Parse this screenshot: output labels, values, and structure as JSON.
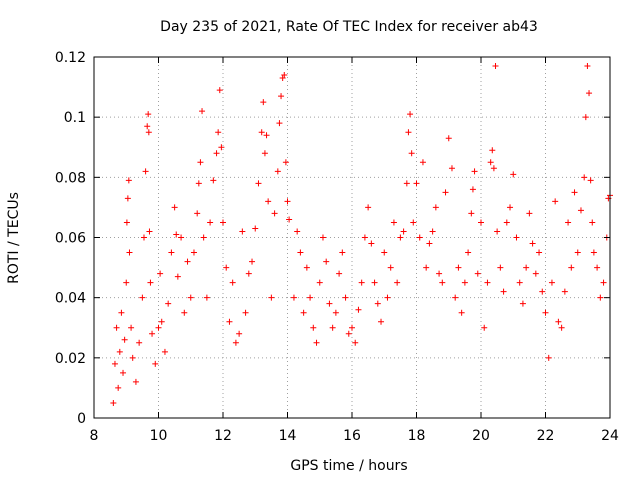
{
  "chart_data": {
    "type": "scatter",
    "title": "Day 235 of 2021, Rate Of TEC Index for receiver ab43",
    "xlabel": "GPS time / hours",
    "ylabel": "ROTI / TECUs",
    "xlim": [
      8,
      24
    ],
    "ylim": [
      0,
      0.12
    ],
    "xticks": [
      "8",
      "10",
      "12",
      "14",
      "16",
      "18",
      "20",
      "22",
      "24"
    ],
    "yticks": [
      "0",
      "0.02",
      "0.04",
      "0.06",
      "0.08",
      "0.1",
      "0.12"
    ],
    "grid": true,
    "marker": "+",
    "color": "#ff0000",
    "series": [
      {
        "points": [
          [
            8.6,
            0.005
          ],
          [
            8.65,
            0.018
          ],
          [
            8.7,
            0.03
          ],
          [
            8.75,
            0.01
          ],
          [
            8.8,
            0.022
          ],
          [
            8.85,
            0.035
          ],
          [
            8.9,
            0.015
          ],
          [
            8.95,
            0.026
          ],
          [
            9.0,
            0.045
          ],
          [
            9.02,
            0.065
          ],
          [
            9.05,
            0.073
          ],
          [
            9.08,
            0.079
          ],
          [
            9.1,
            0.055
          ],
          [
            9.15,
            0.03
          ],
          [
            9.2,
            0.02
          ],
          [
            9.3,
            0.012
          ],
          [
            9.4,
            0.025
          ],
          [
            9.5,
            0.04
          ],
          [
            9.55,
            0.06
          ],
          [
            9.6,
            0.082
          ],
          [
            9.65,
            0.097
          ],
          [
            9.68,
            0.101
          ],
          [
            9.7,
            0.095
          ],
          [
            9.72,
            0.062
          ],
          [
            9.75,
            0.045
          ],
          [
            9.8,
            0.028
          ],
          [
            9.9,
            0.018
          ],
          [
            10.0,
            0.03
          ],
          [
            10.05,
            0.048
          ],
          [
            10.1,
            0.032
          ],
          [
            10.2,
            0.022
          ],
          [
            10.3,
            0.038
          ],
          [
            10.4,
            0.055
          ],
          [
            10.5,
            0.07
          ],
          [
            10.55,
            0.061
          ],
          [
            10.6,
            0.047
          ],
          [
            10.7,
            0.06
          ],
          [
            10.8,
            0.035
          ],
          [
            10.9,
            0.052
          ],
          [
            11.0,
            0.04
          ],
          [
            11.1,
            0.055
          ],
          [
            11.2,
            0.068
          ],
          [
            11.25,
            0.078
          ],
          [
            11.3,
            0.085
          ],
          [
            11.35,
            0.102
          ],
          [
            11.4,
            0.06
          ],
          [
            11.5,
            0.04
          ],
          [
            11.6,
            0.065
          ],
          [
            11.7,
            0.079
          ],
          [
            11.8,
            0.088
          ],
          [
            11.85,
            0.095
          ],
          [
            11.9,
            0.109
          ],
          [
            11.95,
            0.09
          ],
          [
            12.0,
            0.065
          ],
          [
            12.1,
            0.05
          ],
          [
            12.2,
            0.032
          ],
          [
            12.3,
            0.045
          ],
          [
            12.4,
            0.025
          ],
          [
            12.5,
            0.028
          ],
          [
            12.6,
            0.062
          ],
          [
            12.7,
            0.035
          ],
          [
            12.8,
            0.048
          ],
          [
            12.9,
            0.052
          ],
          [
            13.0,
            0.063
          ],
          [
            13.1,
            0.078
          ],
          [
            13.2,
            0.095
          ],
          [
            13.25,
            0.105
          ],
          [
            13.3,
            0.088
          ],
          [
            13.35,
            0.094
          ],
          [
            13.4,
            0.072
          ],
          [
            13.5,
            0.04
          ],
          [
            13.6,
            0.068
          ],
          [
            13.7,
            0.082
          ],
          [
            13.75,
            0.098
          ],
          [
            13.8,
            0.107
          ],
          [
            13.85,
            0.113
          ],
          [
            13.9,
            0.114
          ],
          [
            13.95,
            0.085
          ],
          [
            14.0,
            0.072
          ],
          [
            14.05,
            0.066
          ],
          [
            14.2,
            0.04
          ],
          [
            14.3,
            0.062
          ],
          [
            14.4,
            0.055
          ],
          [
            14.5,
            0.035
          ],
          [
            14.6,
            0.05
          ],
          [
            14.7,
            0.04
          ],
          [
            14.8,
            0.03
          ],
          [
            14.9,
            0.025
          ],
          [
            15.0,
            0.045
          ],
          [
            15.1,
            0.06
          ],
          [
            15.2,
            0.052
          ],
          [
            15.3,
            0.038
          ],
          [
            15.4,
            0.03
          ],
          [
            15.5,
            0.035
          ],
          [
            15.6,
            0.048
          ],
          [
            15.7,
            0.055
          ],
          [
            15.8,
            0.04
          ],
          [
            15.9,
            0.028
          ],
          [
            16.0,
            0.03
          ],
          [
            16.1,
            0.025
          ],
          [
            16.2,
            0.036
          ],
          [
            16.3,
            0.045
          ],
          [
            16.4,
            0.06
          ],
          [
            16.5,
            0.07
          ],
          [
            16.6,
            0.058
          ],
          [
            16.7,
            0.045
          ],
          [
            16.8,
            0.038
          ],
          [
            16.9,
            0.032
          ],
          [
            17.0,
            0.055
          ],
          [
            17.1,
            0.04
          ],
          [
            17.2,
            0.05
          ],
          [
            17.3,
            0.065
          ],
          [
            17.4,
            0.045
          ],
          [
            17.5,
            0.06
          ],
          [
            17.6,
            0.062
          ],
          [
            17.7,
            0.078
          ],
          [
            17.75,
            0.095
          ],
          [
            17.8,
            0.101
          ],
          [
            17.85,
            0.088
          ],
          [
            17.9,
            0.065
          ],
          [
            18.0,
            0.078
          ],
          [
            18.1,
            0.06
          ],
          [
            18.2,
            0.085
          ],
          [
            18.3,
            0.05
          ],
          [
            18.4,
            0.058
          ],
          [
            18.5,
            0.062
          ],
          [
            18.6,
            0.07
          ],
          [
            18.7,
            0.048
          ],
          [
            18.8,
            0.045
          ],
          [
            18.9,
            0.075
          ],
          [
            19.0,
            0.093
          ],
          [
            19.1,
            0.083
          ],
          [
            19.2,
            0.04
          ],
          [
            19.3,
            0.05
          ],
          [
            19.4,
            0.035
          ],
          [
            19.5,
            0.045
          ],
          [
            19.6,
            0.055
          ],
          [
            19.7,
            0.068
          ],
          [
            19.75,
            0.076
          ],
          [
            19.8,
            0.082
          ],
          [
            19.9,
            0.048
          ],
          [
            20.0,
            0.065
          ],
          [
            20.1,
            0.03
          ],
          [
            20.2,
            0.045
          ],
          [
            20.3,
            0.085
          ],
          [
            20.35,
            0.089
          ],
          [
            20.4,
            0.083
          ],
          [
            20.45,
            0.117
          ],
          [
            20.5,
            0.062
          ],
          [
            20.6,
            0.05
          ],
          [
            20.7,
            0.042
          ],
          [
            20.8,
            0.065
          ],
          [
            20.9,
            0.07
          ],
          [
            21.0,
            0.081
          ],
          [
            21.1,
            0.06
          ],
          [
            21.2,
            0.045
          ],
          [
            21.3,
            0.038
          ],
          [
            21.4,
            0.05
          ],
          [
            21.5,
            0.068
          ],
          [
            21.6,
            0.058
          ],
          [
            21.7,
            0.048
          ],
          [
            21.8,
            0.055
          ],
          [
            21.9,
            0.042
          ],
          [
            22.0,
            0.035
          ],
          [
            22.1,
            0.02
          ],
          [
            22.2,
            0.045
          ],
          [
            22.3,
            0.072
          ],
          [
            22.4,
            0.032
          ],
          [
            22.5,
            0.03
          ],
          [
            22.6,
            0.042
          ],
          [
            22.7,
            0.065
          ],
          [
            22.8,
            0.05
          ],
          [
            22.9,
            0.075
          ],
          [
            23.0,
            0.055
          ],
          [
            23.1,
            0.069
          ],
          [
            23.2,
            0.08
          ],
          [
            23.25,
            0.1
          ],
          [
            23.3,
            0.117
          ],
          [
            23.35,
            0.108
          ],
          [
            23.4,
            0.079
          ],
          [
            23.45,
            0.065
          ],
          [
            23.5,
            0.055
          ],
          [
            23.6,
            0.05
          ],
          [
            23.7,
            0.04
          ],
          [
            23.8,
            0.045
          ],
          [
            23.9,
            0.06
          ],
          [
            23.95,
            0.073
          ],
          [
            24.0,
            0.074
          ]
        ]
      }
    ]
  }
}
